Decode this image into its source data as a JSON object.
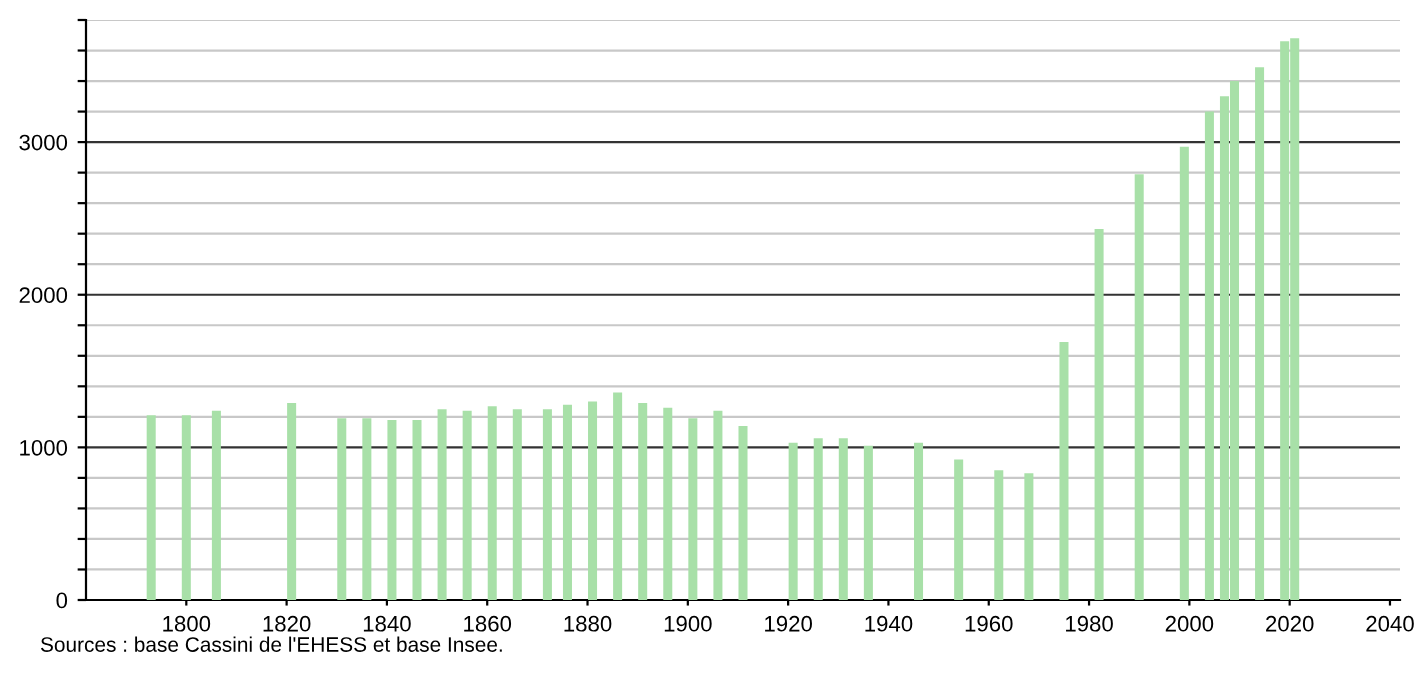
{
  "chart_data": {
    "type": "bar",
    "x": [
      1793,
      1800,
      1806,
      1821,
      1831,
      1836,
      1841,
      1846,
      1851,
      1856,
      1861,
      1866,
      1872,
      1876,
      1881,
      1886,
      1891,
      1896,
      1901,
      1906,
      1911,
      1921,
      1926,
      1931,
      1936,
      1946,
      1954,
      1962,
      1968,
      1975,
      1982,
      1990,
      1999,
      2004,
      2007,
      2009,
      2014,
      2019,
      2021
    ],
    "values": [
      1210,
      1210,
      1240,
      1290,
      1190,
      1190,
      1180,
      1180,
      1250,
      1240,
      1270,
      1250,
      1250,
      1280,
      1300,
      1360,
      1290,
      1260,
      1190,
      1240,
      1140,
      1030,
      1060,
      1060,
      1010,
      1030,
      920,
      850,
      830,
      1690,
      2430,
      2790,
      2970,
      3200,
      3300,
      3400,
      3490,
      3660,
      3680
    ],
    "color": "#a8e0a8",
    "xlim": [
      1780,
      2042
    ],
    "xticks": [
      1800,
      1820,
      1840,
      1860,
      1880,
      1900,
      1920,
      1940,
      1960,
      1980,
      2000,
      2020,
      2040
    ],
    "ylim": [
      0,
      3800
    ],
    "yticks": [
      0,
      {
        "value": 200,
        "label": null
      },
      {
        "value": 400,
        "label": null
      },
      {
        "value": 600,
        "label": null
      },
      {
        "value": 800,
        "label": null
      },
      1000,
      {
        "value": 1200,
        "label": null
      },
      {
        "value": 1400,
        "label": null
      },
      {
        "value": 1600,
        "label": null
      },
      {
        "value": 1800,
        "label": null
      },
      2000,
      {
        "value": 2200,
        "label": null
      },
      {
        "value": 2400,
        "label": null
      },
      {
        "value": 2600,
        "label": null
      },
      {
        "value": 2800,
        "label": null
      },
      3000,
      {
        "value": 3200,
        "label": null
      },
      {
        "value": 3400,
        "label": null
      },
      {
        "value": 3600,
        "label": null
      },
      {
        "value": 3800,
        "label": null
      }
    ],
    "grid": "y",
    "annotations": [
      "Sources : base Cassini de l'EHESS et base Insee."
    ]
  }
}
